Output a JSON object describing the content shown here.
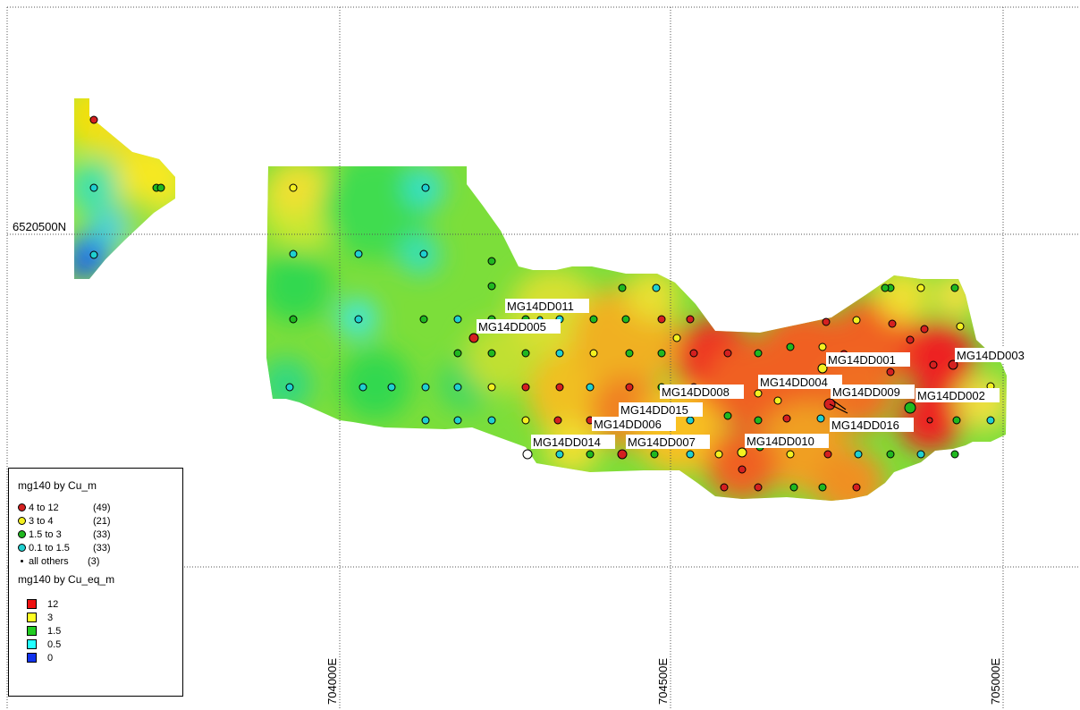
{
  "map": {
    "grid_labels": {
      "northing": "6520500N",
      "eastings": [
        "704000E",
        "704500E",
        "705000E"
      ]
    }
  },
  "drillholes": [
    "MG14DD011",
    "MG14DD005",
    "MG14DD001",
    "MG14DD003",
    "MG14DD008",
    "MG14DD004",
    "MG14DD009",
    "MG14DD002",
    "MG14DD015",
    "MG14DD006",
    "MG14DD016",
    "MG14DD014",
    "MG14DD007",
    "MG14DD010"
  ],
  "legend": {
    "points_title": "mg140 by Cu_m",
    "points": [
      {
        "range": "4    to 12",
        "count": "(49)",
        "color": "#d42020"
      },
      {
        "range": "3    to   4",
        "count": "(21)",
        "color": "#f4f020"
      },
      {
        "range": "1.5 to   3",
        "count": "(33)",
        "color": "#20b820"
      },
      {
        "range": "0.1 to   1.5",
        "count": "(33)",
        "color": "#20d0d0"
      },
      {
        "range": "all others",
        "count": "(3)",
        "color": "#000000"
      }
    ],
    "grid_title": "mg140 by Cu_eq_m",
    "grid": [
      {
        "value": "12",
        "color": "#ee1111"
      },
      {
        "value": "3",
        "color": "#ffff22"
      },
      {
        "value": "1.5",
        "color": "#22cc22"
      },
      {
        "value": "0.5",
        "color": "#22ffff"
      },
      {
        "value": "0",
        "color": "#1133ee"
      }
    ]
  }
}
